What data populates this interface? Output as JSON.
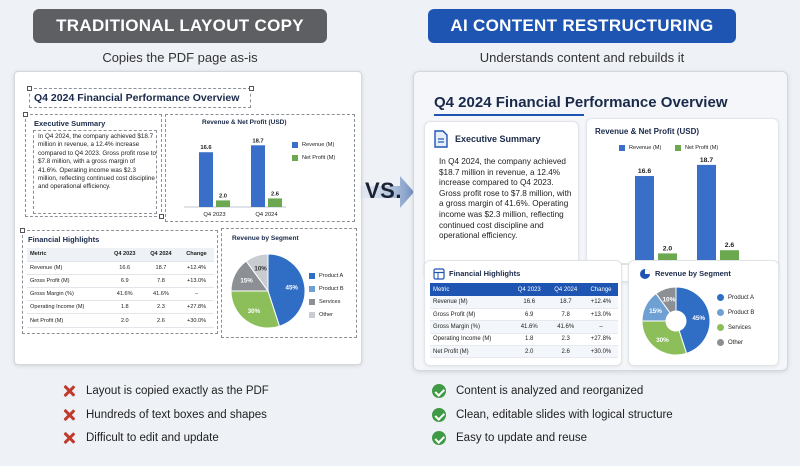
{
  "left": {
    "header": "TRADITIONAL LAYOUT COPY",
    "subheader": "Copies the PDF page as-is",
    "slide": {
      "title": "Q4 2024 Financial Performance Overview",
      "exec_title": "Executive Summary",
      "exec_body": "In Q4 2024, the company achieved $18.7 million in revenue, a 12.4% increase compared to Q4 2023. Gross profit rose to $7.8 million, with a gross margin of 41.6%. Operating income was $2.3 million, reflecting continued cost discipline and operational efficiency.",
      "bar_title": "Revenue & Net Profit (USD)",
      "seg_title": "Revenue by Segment",
      "highlights_title": "Financial Highlights"
    },
    "bullets": [
      "Layout is copied exactly as the PDF",
      "Hundreds of text boxes and shapes",
      "Difficult to edit and update"
    ]
  },
  "right": {
    "header": "AI CONTENT RESTRUCTURING",
    "subheader": "Understands content and rebuilds it",
    "slide": {
      "title": "Q4 2024 Financial Performance Overview",
      "exec_title": "Executive Summary",
      "exec_body": "In Q4 2024, the company achieved $18.7 million in revenue, a 12.4% increase compared to Q4 2023. Gross profit rose to $7.8 million, with a gross margin of 41.6%. Operating income was $2.3 million, reflecting continued cost discipline and operational efficiency.",
      "bar_title": "Revenue & Net Profit (USD)",
      "seg_title": "Revenue by Segment",
      "highlights_title": "Financial Highlights"
    },
    "bullets": [
      "Content is analyzed and reorganized",
      "Clean, editable slides with logical structure",
      "Easy to update and reuse"
    ]
  },
  "vs_label": "VS.",
  "table": {
    "headers": [
      "Metric",
      "Q4 2023",
      "Q4 2024",
      "Change"
    ],
    "rows": [
      [
        "Revenue (M)",
        "16.6",
        "18.7",
        "+12.4%"
      ],
      [
        "Gross Profit (M)",
        "6.9",
        "7.8",
        "+13.0%"
      ],
      [
        "Gross Margin (%)",
        "41.6%",
        "41.6%",
        "–"
      ],
      [
        "Operating Income (M)",
        "1.8",
        "2.3",
        "+27.8%"
      ],
      [
        "Net Profit (M)",
        "2.0",
        "2.6",
        "+30.0%"
      ]
    ]
  },
  "colors": {
    "revenue": "#3a6fc9",
    "net_profit": "#6ba84f",
    "product_a": "#2f6ec4",
    "product_b": "#6fa0d4",
    "services": "#8cbf5a",
    "other": "#8c8f94",
    "header_left": "#5d5f63",
    "header_right": "#1e55b3"
  },
  "chart_data": [
    {
      "type": "bar",
      "title": "Revenue & Net Profit (USD)",
      "categories": [
        "Q4 2023",
        "Q4 2024"
      ],
      "series": [
        {
          "name": "Revenue (M)",
          "values": [
            16.6,
            18.7
          ]
        },
        {
          "name": "Net Profit (M)",
          "values": [
            2.0,
            2.6
          ]
        }
      ],
      "ylim": [
        0,
        20
      ]
    },
    {
      "type": "pie",
      "title": "Revenue by Segment",
      "labels": [
        "Product A",
        "Product B",
        "Services",
        "Other"
      ],
      "values": [
        45,
        30,
        15,
        10
      ],
      "value_labels": [
        "45%",
        "30%",
        "15%",
        "10%"
      ]
    }
  ]
}
